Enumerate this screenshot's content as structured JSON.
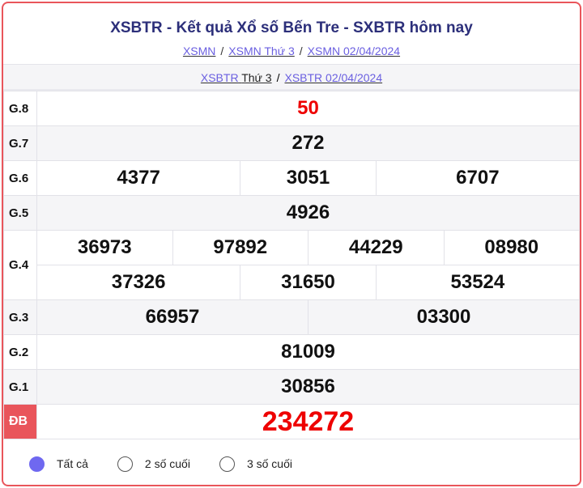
{
  "header": {
    "title": "XSBTR - Kết quả Xổ số Bến Tre - SXBTR hôm nay",
    "breadcrumbs": [
      "XSMN",
      "XSMN Thứ 3",
      "XSMN 02/04/2024"
    ],
    "sub_link1": "XSBTR",
    "sub_link1_suffix": "Thứ 3",
    "sub_link2": "XSBTR 02/04/2024"
  },
  "prizes": {
    "g8": {
      "label": "G.8",
      "numbers": [
        "50"
      ]
    },
    "g7": {
      "label": "G.7",
      "numbers": [
        "272"
      ]
    },
    "g6": {
      "label": "G.6",
      "numbers": [
        "4377",
        "3051",
        "6707"
      ]
    },
    "g5": {
      "label": "G.5",
      "numbers": [
        "4926"
      ]
    },
    "g4": {
      "label": "G.4",
      "numbers": [
        "36973",
        "97892",
        "44229",
        "08980",
        "37326",
        "31650",
        "53524"
      ]
    },
    "g3": {
      "label": "G.3",
      "numbers": [
        "66957",
        "03300"
      ]
    },
    "g2": {
      "label": "G.2",
      "numbers": [
        "81009"
      ]
    },
    "g1": {
      "label": "G.1",
      "numbers": [
        "30856"
      ]
    },
    "db": {
      "label": "ĐB",
      "numbers": [
        "234272"
      ]
    }
  },
  "filters": {
    "options": [
      "Tất cả",
      "2 số cuối",
      "3 số cuối"
    ],
    "selected": "Tất cả"
  },
  "colors": {
    "accent": "#e9555b",
    "title": "#2c2f7a",
    "link": "#6a5fe0",
    "prize_red": "#ee0000",
    "radio_selected": "#6f68f0"
  }
}
